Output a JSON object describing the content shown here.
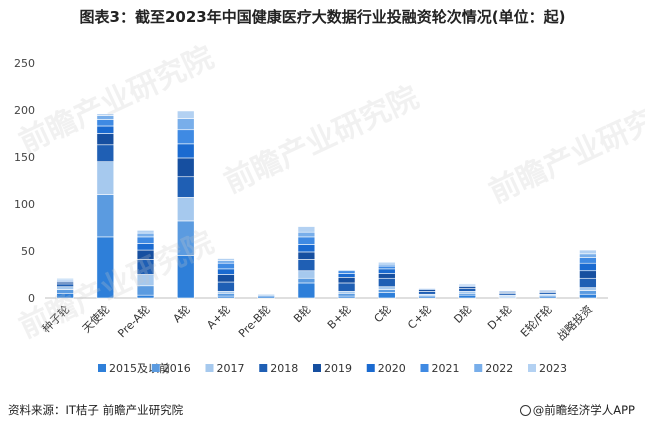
{
  "title": "图表3：截至2023年中国健康医疗大数据行业投融资轮次情况(单位：起)",
  "source_label": "资料来源：IT桔子 前瞻产业研究院",
  "brand_label": "@前瞻经济学人APP",
  "watermarks": [
    "前瞻产业研究院",
    "前瞻产业研究院",
    "前瞻产业研究院",
    "前瞻产业研究院"
  ],
  "chart_data": {
    "type": "bar",
    "stacked": true,
    "categories": [
      "种子轮",
      "天使轮",
      "Pre-A轮",
      "A轮",
      "A+轮",
      "Pre-B轮",
      "B轮",
      "B+轮",
      "C轮",
      "C+轮",
      "D轮",
      "D+轮",
      "E轮/F轮",
      "战略投资"
    ],
    "ylim": [
      0,
      250
    ],
    "yticks": [
      0,
      50,
      100,
      150,
      200,
      250
    ],
    "grid": false,
    "legend_position": "bottom",
    "series": [
      {
        "name": "2015及以前",
        "color": "#2E7FD9",
        "values": [
          5,
          65,
          3,
          45,
          2,
          2,
          16,
          2,
          6,
          2,
          3,
          1,
          2,
          4
        ]
      },
      {
        "name": "2016",
        "color": "#5B9BE0",
        "values": [
          4,
          45,
          10,
          37,
          3,
          1,
          5,
          3,
          3,
          1,
          2,
          1,
          1,
          4
        ]
      },
      {
        "name": "2017",
        "color": "#A6C9EE",
        "values": [
          3,
          35,
          12,
          25,
          2,
          1,
          8,
          2,
          3,
          1,
          2,
          1,
          1,
          3
        ]
      },
      {
        "name": "2018",
        "color": "#1F5FB4",
        "values": [
          3,
          18,
          16,
          22,
          10,
          0,
          12,
          9,
          9,
          3,
          3,
          2,
          2,
          10
        ]
      },
      {
        "name": "2019",
        "color": "#164FA0",
        "values": [
          2,
          12,
          10,
          20,
          8,
          0,
          8,
          6,
          5,
          2,
          2,
          1,
          1,
          8
        ]
      },
      {
        "name": "2020",
        "color": "#1A6AD0",
        "values": [
          1,
          8,
          7,
          15,
          6,
          0,
          8,
          4,
          5,
          1,
          1,
          1,
          1,
          8
        ]
      },
      {
        "name": "2021",
        "color": "#3F8AE3",
        "values": [
          1,
          7,
          7,
          15,
          6,
          0,
          8,
          3,
          3,
          0,
          1,
          0,
          0,
          6
        ]
      },
      {
        "name": "2022",
        "color": "#78AEEA",
        "values": [
          1,
          4,
          4,
          12,
          3,
          0,
          5,
          1,
          2,
          0,
          1,
          0,
          0,
          4
        ]
      },
      {
        "name": "2023",
        "color": "#B3D1F2",
        "values": [
          1,
          2,
          3,
          8,
          2,
          0,
          6,
          0,
          2,
          0,
          0,
          0,
          0,
          4
        ]
      }
    ]
  }
}
